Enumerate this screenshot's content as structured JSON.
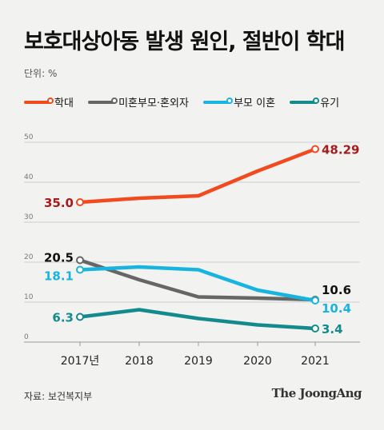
{
  "header": {
    "title": "보호대상아동 발생 원인, 절반이 학대",
    "unit": "단위: %"
  },
  "footer": {
    "source": "자료: 보건복지부",
    "brand": "The JoongAng"
  },
  "chart_data": {
    "type": "line",
    "x": [
      "2017년",
      "2018",
      "2019",
      "2020",
      "2021"
    ],
    "ylim": [
      0,
      50
    ],
    "yticks": [
      0,
      10,
      20,
      30,
      40,
      50
    ],
    "grid": true,
    "legend": "top-left",
    "series": [
      {
        "name": "학대",
        "color": "#f04a1e",
        "values": [
          35.0,
          36.0,
          36.6,
          42.8,
          48.29
        ],
        "labels": [
          {
            "i": 0,
            "text": "35.0",
            "color": "#a51c1c"
          },
          {
            "i": 4,
            "text": "48.29",
            "color": "#a51c1c"
          }
        ]
      },
      {
        "name": "미혼부모·혼외자",
        "color": "#666666",
        "values": [
          20.5,
          15.6,
          11.3,
          11.0,
          10.6
        ],
        "labels": [
          {
            "i": 0,
            "text": "20.5",
            "color": "#111111"
          },
          {
            "i": 4,
            "text": "10.6",
            "color": "#111111"
          }
        ]
      },
      {
        "name": "부모 이혼",
        "color": "#17b4e0",
        "values": [
          18.1,
          18.8,
          18.1,
          13.0,
          10.4
        ],
        "labels": [
          {
            "i": 0,
            "text": "18.1",
            "color": "#17b4e0"
          },
          {
            "i": 4,
            "text": "10.4",
            "color": "#17b4e0"
          }
        ]
      },
      {
        "name": "유기",
        "color": "#128a8e",
        "values": [
          6.3,
          8.1,
          5.9,
          4.3,
          3.4
        ],
        "labels": [
          {
            "i": 0,
            "text": "6.3",
            "color": "#128a8e"
          },
          {
            "i": 4,
            "text": "3.4",
            "color": "#128a8e"
          }
        ]
      }
    ]
  }
}
